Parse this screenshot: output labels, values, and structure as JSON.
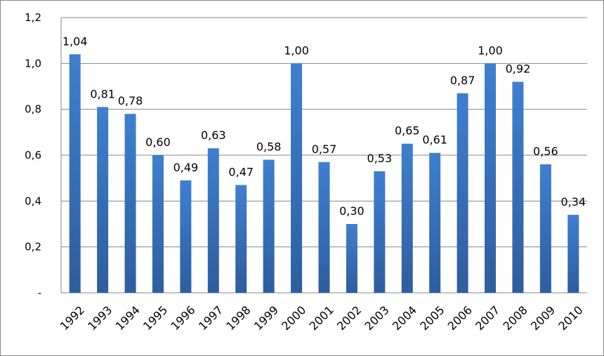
{
  "chart_data": {
    "type": "bar",
    "categories": [
      "1992",
      "1993",
      "1994",
      "1995",
      "1996",
      "1997",
      "1998",
      "1999",
      "2000",
      "2001",
      "2002",
      "2003",
      "2004",
      "2005",
      "2006",
      "2007",
      "2008",
      "2009",
      "2010"
    ],
    "values": [
      1.04,
      0.81,
      0.78,
      0.6,
      0.49,
      0.63,
      0.47,
      0.58,
      1.0,
      0.57,
      0.3,
      0.53,
      0.65,
      0.61,
      0.87,
      1.0,
      0.92,
      0.56,
      0.34
    ],
    "data_labels": [
      "1,04",
      "0,81",
      "0,78",
      "0,60",
      "0,49",
      "0,63",
      "0,47",
      "0,58",
      "1,00",
      "0,57",
      "0,30",
      "0,53",
      "0,65",
      "0,61",
      "0,87",
      "1,00",
      "0,92",
      "0,56",
      "0,34"
    ],
    "title": "",
    "xlabel": "",
    "ylabel": "",
    "ylim": [
      0,
      1.2
    ],
    "yticks": [
      0,
      0.2,
      0.4,
      0.6,
      0.8,
      1.0,
      1.2
    ],
    "ytick_labels": [
      "-",
      "0,2",
      "0,4",
      "0,6",
      "0,8",
      "1,0",
      "1,2"
    ],
    "grid": true,
    "legend": "none",
    "colors": {
      "bar_top": "#3f7fcf",
      "bar_bottom": "#2d5e9e",
      "grid": "#868686",
      "axis": "#868686"
    }
  }
}
